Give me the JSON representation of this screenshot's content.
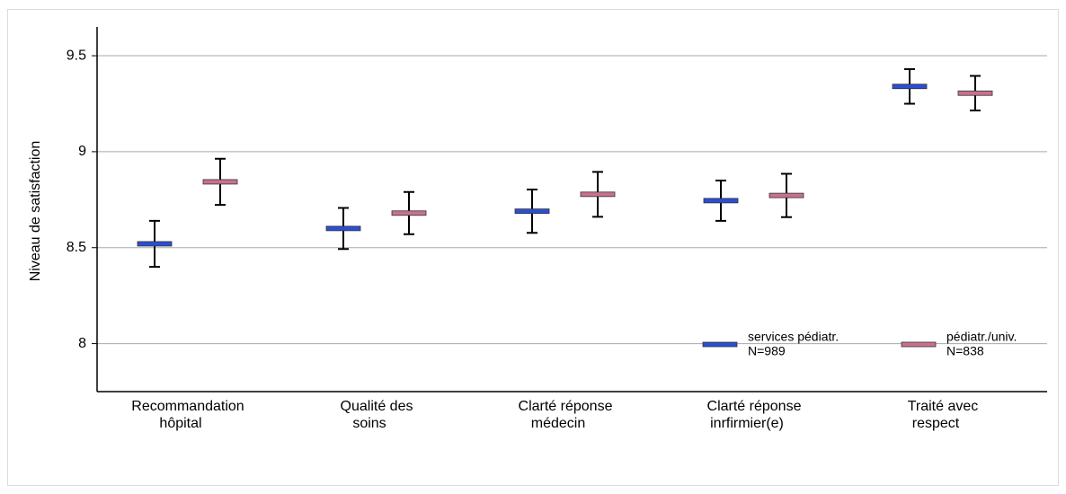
{
  "chart_data": {
    "type": "errorbar",
    "y_label": "Niveau de satisfaction",
    "categories": [
      [
        "Recommandation",
        "hôpital"
      ],
      [
        "Qualité des",
        "soins"
      ],
      [
        "Clarté réponse",
        "médecin"
      ],
      [
        "Clarté réponse",
        "inrfirmier(e)"
      ],
      [
        "Traité avec",
        "respect"
      ]
    ],
    "series": [
      {
        "name": [
          "services pédiatr.",
          "N=989"
        ],
        "color": "#2b4ed4",
        "values": [
          8.52,
          8.6,
          8.69,
          8.745,
          9.34
        ],
        "errors": [
          0.12,
          0.107,
          0.113,
          0.105,
          0.09
        ]
      },
      {
        "name": [
          "pédiatr./univ.",
          "N=838"
        ],
        "color": "#c9718c",
        "values": [
          8.843,
          8.68,
          8.778,
          8.772,
          9.305
        ],
        "errors": [
          0.12,
          0.11,
          0.117,
          0.113,
          0.09
        ]
      }
    ],
    "ylim": [
      7.75,
      9.65
    ],
    "yticks": [
      8,
      8.5,
      9,
      9.5
    ],
    "grid": true,
    "legend": "lower-right"
  }
}
